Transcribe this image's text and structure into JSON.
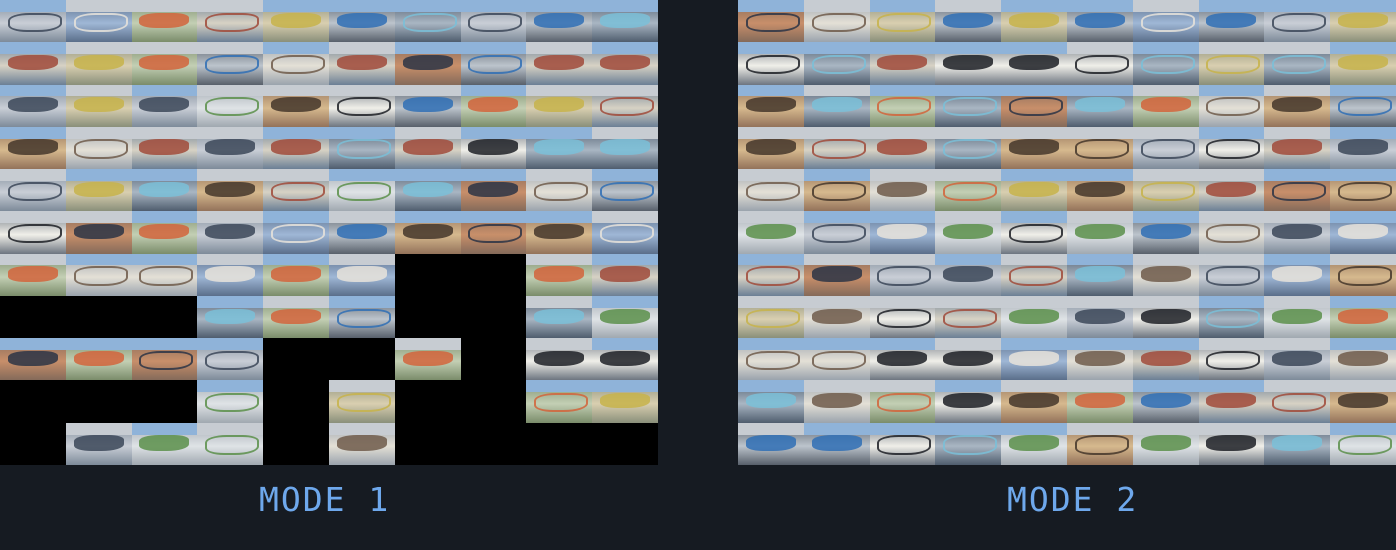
{
  "labels": {
    "mode_1": "MODE 1",
    "mode_2": "MODE 2"
  },
  "colors": {
    "background": "#161b22",
    "label": "#6ea8ec",
    "empty_tile": "#000000"
  },
  "grid": {
    "columns": 10,
    "rows": 11
  },
  "panels": [
    {
      "id": "mode-1",
      "empty_tiles": [
        [
          7,
          7
        ],
        [
          7,
          8
        ],
        [
          8,
          1
        ],
        [
          8,
          2
        ],
        [
          8,
          3
        ],
        [
          8,
          7
        ],
        [
          8,
          8
        ],
        [
          9,
          5
        ],
        [
          9,
          6
        ],
        [
          9,
          8
        ],
        [
          10,
          1
        ],
        [
          10,
          2
        ],
        [
          10,
          3
        ],
        [
          10,
          5
        ],
        [
          10,
          7
        ],
        [
          10,
          8
        ],
        [
          11,
          1
        ],
        [
          11,
          5
        ],
        [
          11,
          7
        ],
        [
          11,
          8
        ],
        [
          11,
          9
        ],
        [
          11,
          10
        ]
      ]
    },
    {
      "id": "mode-2",
      "empty_tiles": []
    }
  ]
}
